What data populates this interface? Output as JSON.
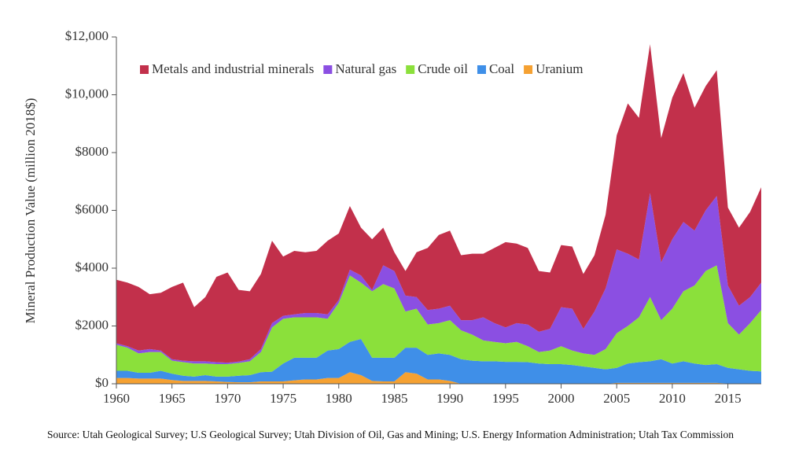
{
  "chart_data": {
    "type": "stacked-area",
    "y_label": "Mineral Production Value (million 2018$)",
    "source": "Source: Utah Geological Survey; U.S Geological Survey; Utah Division of Oil, Gas and Mining; U.S. Energy Information Administration; Utah Tax Commission",
    "x": [
      1960,
      1961,
      1962,
      1963,
      1964,
      1965,
      1966,
      1967,
      1968,
      1969,
      1970,
      1971,
      1972,
      1973,
      1974,
      1975,
      1976,
      1977,
      1978,
      1979,
      1980,
      1981,
      1982,
      1983,
      1984,
      1985,
      1986,
      1987,
      1988,
      1989,
      1990,
      1991,
      1992,
      1993,
      1994,
      1995,
      1996,
      1997,
      1998,
      1999,
      2000,
      2001,
      2002,
      2003,
      2004,
      2005,
      2006,
      2007,
      2008,
      2009,
      2010,
      2011,
      2012,
      2013,
      2014,
      2015,
      2016,
      2017,
      2018
    ],
    "xlim": [
      1960,
      2018
    ],
    "xticks": [
      1960,
      1965,
      1970,
      1975,
      1980,
      1985,
      1990,
      1995,
      2000,
      2005,
      2010,
      2015
    ],
    "ylim": [
      0,
      12000
    ],
    "yticks": [
      {
        "value": 0,
        "label": "$0"
      },
      {
        "value": 2000,
        "label": "$2000"
      },
      {
        "value": 4000,
        "label": "$4000"
      },
      {
        "value": 6000,
        "label": "$6000"
      },
      {
        "value": 8000,
        "label": "$8000"
      },
      {
        "value": 10000,
        "label": "$10,000"
      },
      {
        "value": 12000,
        "label": "$12,000"
      }
    ],
    "series": [
      {
        "name": "Metals and industrial minerals",
        "color": "#c2304b",
        "values": [
          2200,
          2200,
          2200,
          1900,
          2000,
          2500,
          2700,
          1870,
          2220,
          2950,
          3120,
          2480,
          2350,
          2600,
          2850,
          2050,
          2200,
          2100,
          2150,
          2550,
          2300,
          2200,
          1650,
          1750,
          1300,
          650,
          850,
          1550,
          2150,
          2550,
          2600,
          2250,
          2300,
          2200,
          2600,
          2950,
          2750,
          2650,
          2100,
          1950,
          2150,
          2150,
          1900,
          1950,
          2550,
          3950,
          5200,
          4900,
          5150,
          4300,
          4900,
          5150,
          4250,
          4300,
          4350,
          2700,
          2700,
          2950,
          3300
        ]
      },
      {
        "name": "Natural gas",
        "color": "#8b4fe2",
        "values": [
          50,
          50,
          100,
          100,
          50,
          50,
          50,
          80,
          80,
          70,
          50,
          50,
          70,
          100,
          150,
          100,
          100,
          150,
          150,
          150,
          100,
          200,
          250,
          50,
          650,
          600,
          550,
          400,
          500,
          500,
          500,
          350,
          500,
          800,
          650,
          550,
          650,
          750,
          700,
          750,
          1350,
          1450,
          850,
          1500,
          2100,
          2900,
          2500,
          2000,
          3600,
          2000,
          2400,
          2400,
          1900,
          2100,
          2400,
          1300,
          1000,
          900,
          950
        ]
      },
      {
        "name": "Crude oil",
        "color": "#8be03b",
        "values": [
          900,
          800,
          670,
          720,
          650,
          450,
          470,
          450,
          400,
          430,
          430,
          440,
          480,
          700,
          1530,
          1550,
          1400,
          1400,
          1400,
          1100,
          1600,
          2300,
          1950,
          2300,
          2550,
          2400,
          1250,
          1350,
          1050,
          1050,
          1200,
          1000,
          900,
          720,
          670,
          640,
          690,
          550,
          400,
          470,
          620,
          500,
          450,
          450,
          700,
          1200,
          1300,
          1550,
          2220,
          1350,
          1900,
          2420,
          2700,
          3250,
          3420,
          1550,
          1200,
          1650,
          2120
        ]
      },
      {
        "name": "Coal",
        "color": "#3f8fe8",
        "values": [
          250,
          250,
          200,
          200,
          270,
          220,
          180,
          150,
          200,
          170,
          190,
          230,
          250,
          320,
          340,
          620,
          780,
          750,
          750,
          950,
          1000,
          1050,
          1250,
          800,
          820,
          820,
          850,
          900,
          850,
          900,
          900,
          850,
          800,
          780,
          780,
          760,
          760,
          750,
          700,
          680,
          680,
          650,
          600,
          550,
          500,
          520,
          670,
          720,
          750,
          820,
          670,
          750,
          670,
          620,
          650,
          540,
          490,
          440,
          420
        ]
      },
      {
        "name": "Uranium",
        "color": "#f5a132",
        "values": [
          200,
          200,
          180,
          180,
          180,
          130,
          100,
          100,
          100,
          80,
          60,
          50,
          50,
          80,
          80,
          80,
          120,
          150,
          150,
          200,
          200,
          400,
          300,
          100,
          80,
          80,
          400,
          350,
          150,
          150,
          100,
          0,
          0,
          0,
          0,
          0,
          0,
          0,
          0,
          0,
          0,
          0,
          0,
          0,
          0,
          30,
          30,
          30,
          30,
          30,
          30,
          30,
          30,
          30,
          30,
          10,
          10,
          10,
          10
        ]
      }
    ]
  }
}
